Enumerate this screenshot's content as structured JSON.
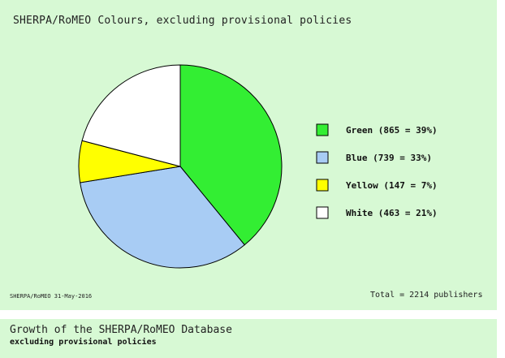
{
  "chart_data": {
    "type": "pie",
    "title": "SHERPA/RoMEO Colours, excluding provisional policies",
    "slices": [
      {
        "name": "Green",
        "value": 865,
        "percent": 39,
        "color": "#33ee33",
        "label": "Green (865 = 39%)"
      },
      {
        "name": "Blue",
        "value": 739,
        "percent": 33,
        "color": "#a8ccf4",
        "label": "Blue (739 = 33%)"
      },
      {
        "name": "Yellow",
        "value": 147,
        "percent": 7,
        "color": "#ffff00",
        "label": "Yellow (147 = 7%)"
      },
      {
        "name": "White",
        "value": 463,
        "percent": 21,
        "color": "#ffffff",
        "label": "White (463 = 21%)"
      }
    ],
    "legend_placement": "right",
    "footer_left": "SHERPA/RoMEO 31-May-2016",
    "footer_right": "Total = 2214 publishers"
  },
  "second_chart": {
    "title": "Growth of the SHERPA/RoMEO Database",
    "subtitle": "excluding provisional policies"
  }
}
